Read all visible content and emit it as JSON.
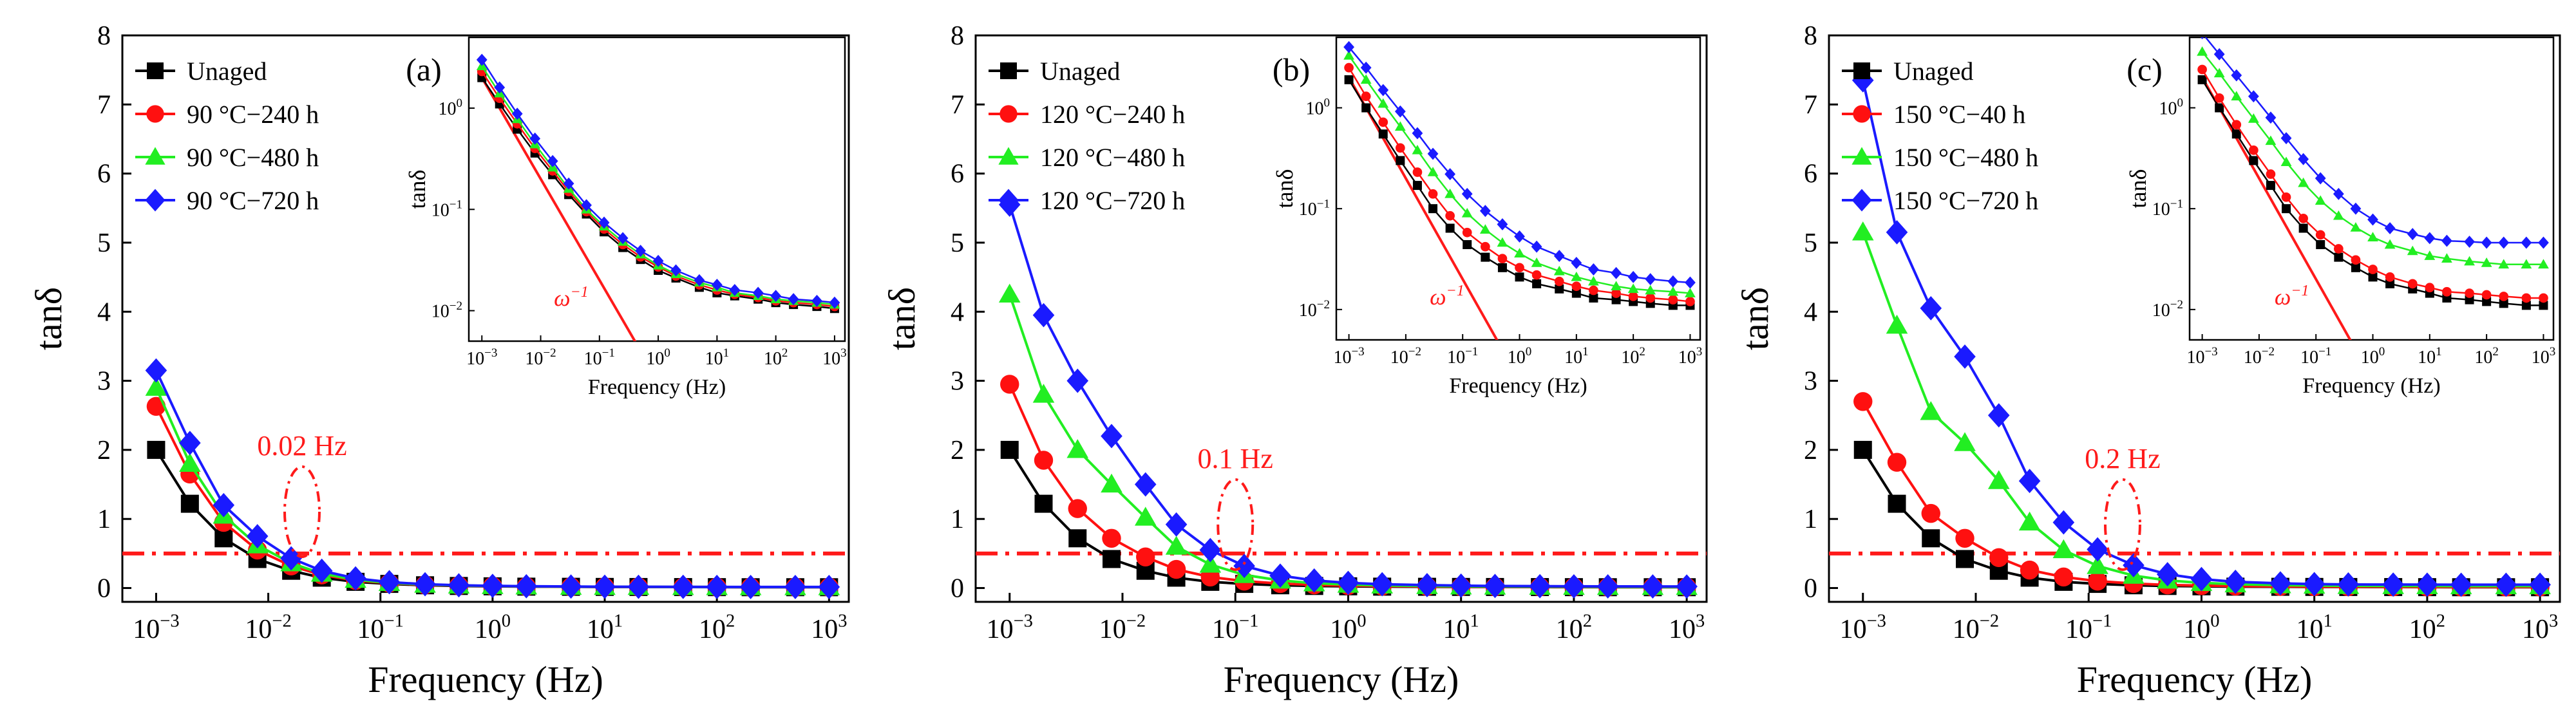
{
  "figure": {
    "xlabel": "Frequency (Hz)",
    "ylabel_main": "tanδ",
    "ylabel_inset": "tanδ",
    "inset_xlabel": "Frequency (Hz)",
    "omega_label": "ω",
    "omega_exp": "−1",
    "main_yticks": [
      "0",
      "1",
      "2",
      "3",
      "4",
      "5",
      "6",
      "7",
      "8"
    ],
    "log_xticks": [
      {
        "base": "10",
        "exp": "−3"
      },
      {
        "base": "10",
        "exp": "−2"
      },
      {
        "base": "10",
        "exp": "−1"
      },
      {
        "base": "10",
        "exp": "0"
      },
      {
        "base": "10",
        "exp": "1"
      },
      {
        "base": "10",
        "exp": "2"
      },
      {
        "base": "10",
        "exp": "3"
      }
    ],
    "inset_yticks": [
      {
        "base": "10",
        "exp": "−2"
      },
      {
        "base": "10",
        "exp": "−1"
      },
      {
        "base": "10",
        "exp": "0"
      }
    ],
    "colors": {
      "Unaged": "#000000",
      "red": "#ff1010",
      "green": "#22ee22",
      "blue": "#1a1aff",
      "annotation": "#ff1a1a",
      "axis": "#000000"
    },
    "markers": [
      "square",
      "circle",
      "triangle",
      "diamond"
    ]
  },
  "chart_data": [
    {
      "type": "line",
      "panel": "(a)",
      "title": "",
      "xlabel": "Frequency (Hz)",
      "ylabel": "tanδ",
      "xscale": "log",
      "xlim": [
        0.0005,
        1500
      ],
      "ylim": [
        -0.2,
        8
      ],
      "legend_position": "top-left",
      "x": [
        0.001,
        0.002,
        0.004,
        0.008,
        0.016,
        0.03,
        0.06,
        0.12,
        0.25,
        0.5,
        1,
        2,
        5,
        10,
        20,
        50,
        100,
        200,
        500,
        1000
      ],
      "series": [
        {
          "name": "Unaged",
          "values": [
            2.0,
            1.22,
            0.72,
            0.42,
            0.25,
            0.15,
            0.09,
            0.06,
            0.04,
            0.03,
            0.025,
            0.02,
            0.018,
            0.016,
            0.015,
            0.014,
            0.013,
            0.012,
            0.012,
            0.012
          ]
        },
        {
          "name": "90 °C−240 h",
          "values": [
            2.63,
            1.65,
            0.95,
            0.55,
            0.32,
            0.19,
            0.11,
            0.07,
            0.045,
            0.035,
            0.028,
            0.022,
            0.019,
            0.017,
            0.016,
            0.015,
            0.014,
            0.013,
            0.013,
            0.013
          ]
        },
        {
          "name": "90 °C−480 h",
          "values": [
            2.9,
            1.8,
            1.05,
            0.62,
            0.36,
            0.21,
            0.12,
            0.075,
            0.05,
            0.037,
            0.03,
            0.024,
            0.02,
            0.018,
            0.017,
            0.016,
            0.015,
            0.014,
            0.014,
            0.014
          ]
        },
        {
          "name": "90 °C−720 h",
          "values": [
            3.15,
            2.1,
            1.2,
            0.75,
            0.43,
            0.25,
            0.14,
            0.085,
            0.055,
            0.04,
            0.032,
            0.026,
            0.022,
            0.019,
            0.018,
            0.017,
            0.016,
            0.015,
            0.015,
            0.015
          ]
        }
      ],
      "annotations": [
        {
          "text": "0.02 Hz",
          "x": 0.02
        },
        {
          "type": "hline",
          "y": 0.5,
          "style": "dash-dot"
        }
      ],
      "inset": {
        "xscale": "log",
        "yscale": "log",
        "xlim": [
          0.0006,
          1500
        ],
        "ylim": [
          0.005,
          5
        ],
        "xlabel": "Frequency (Hz)",
        "ylabel": "tanδ",
        "reference_line": {
          "label": "ω^−1",
          "from": [
            0.001,
            2.0
          ],
          "to": [
            3,
            0.00067
          ]
        },
        "series": [
          {
            "name": "Unaged",
            "values": [
              2.0,
              1.1,
              0.62,
              0.36,
              0.22,
              0.14,
              0.09,
              0.06,
              0.042,
              0.032,
              0.025,
              0.021,
              0.017,
              0.015,
              0.014,
              0.013,
              0.012,
              0.0115,
              0.011,
              0.0105
            ]
          },
          {
            "name": "90 °C−240 h",
            "values": [
              2.3,
              1.25,
              0.7,
              0.4,
              0.24,
              0.15,
              0.095,
              0.064,
              0.045,
              0.034,
              0.027,
              0.022,
              0.018,
              0.016,
              0.0145,
              0.0135,
              0.0125,
              0.012,
              0.0115,
              0.011
            ]
          },
          {
            "name": "90 °C−480 h",
            "values": [
              2.6,
              1.4,
              0.78,
              0.44,
              0.26,
              0.16,
              0.1,
              0.068,
              0.048,
              0.036,
              0.028,
              0.023,
              0.019,
              0.017,
              0.015,
              0.014,
              0.013,
              0.0125,
              0.012,
              0.0115
            ]
          },
          {
            "name": "90 °C−720 h",
            "values": [
              3.0,
              1.6,
              0.88,
              0.5,
              0.3,
              0.18,
              0.11,
              0.074,
              0.052,
              0.039,
              0.031,
              0.025,
              0.02,
              0.018,
              0.016,
              0.015,
              0.014,
              0.013,
              0.0125,
              0.012
            ]
          }
        ]
      }
    },
    {
      "type": "line",
      "panel": "(b)",
      "title": "",
      "xlabel": "Frequency (Hz)",
      "ylabel": "tanδ",
      "xscale": "log",
      "xlim": [
        0.0005,
        1500
      ],
      "ylim": [
        -0.2,
        8
      ],
      "legend_position": "top-left",
      "x": [
        0.001,
        0.002,
        0.004,
        0.008,
        0.016,
        0.03,
        0.06,
        0.12,
        0.25,
        0.5,
        1,
        2,
        5,
        10,
        20,
        50,
        100,
        200,
        500,
        1000
      ],
      "series": [
        {
          "name": "Unaged",
          "values": [
            2.0,
            1.22,
            0.72,
            0.42,
            0.25,
            0.15,
            0.09,
            0.06,
            0.04,
            0.03,
            0.025,
            0.02,
            0.018,
            0.016,
            0.015,
            0.014,
            0.013,
            0.012,
            0.012,
            0.012
          ]
        },
        {
          "name": "120 °C−240 h",
          "values": [
            2.95,
            1.85,
            1.15,
            0.72,
            0.45,
            0.27,
            0.16,
            0.1,
            0.065,
            0.045,
            0.035,
            0.028,
            0.023,
            0.02,
            0.018,
            0.017,
            0.016,
            0.015,
            0.015,
            0.015
          ]
        },
        {
          "name": "120 °C−480 h",
          "values": [
            4.25,
            2.8,
            2.0,
            1.5,
            1.02,
            0.6,
            0.34,
            0.19,
            0.11,
            0.07,
            0.05,
            0.038,
            0.03,
            0.025,
            0.022,
            0.02,
            0.019,
            0.018,
            0.017,
            0.017
          ]
        },
        {
          "name": "120 °C−720 h",
          "values": [
            5.55,
            3.95,
            3.0,
            2.2,
            1.5,
            0.92,
            0.55,
            0.32,
            0.18,
            0.11,
            0.075,
            0.055,
            0.042,
            0.035,
            0.03,
            0.027,
            0.025,
            0.024,
            0.023,
            0.022
          ]
        }
      ],
      "annotations": [
        {
          "text": "0.1 Hz",
          "x": 0.1
        },
        {
          "type": "hline",
          "y": 0.5,
          "style": "dash-dot"
        }
      ],
      "inset": {
        "xscale": "log",
        "yscale": "log",
        "xlim": [
          0.0006,
          1500
        ],
        "ylim": [
          0.005,
          5
        ],
        "xlabel": "Frequency (Hz)",
        "ylabel": "tanδ",
        "reference_line": {
          "label": "ω^−1",
          "from": [
            0.001,
            2.0
          ],
          "to": [
            8,
            0.00025
          ]
        },
        "series": [
          {
            "name": "Unaged",
            "values": [
              1.9,
              1.0,
              0.55,
              0.3,
              0.17,
              0.1,
              0.064,
              0.044,
              0.033,
              0.026,
              0.021,
              0.018,
              0.016,
              0.0145,
              0.013,
              0.0125,
              0.012,
              0.0115,
              0.011,
              0.011
            ]
          },
          {
            "name": "120 °C−240 h",
            "values": [
              2.5,
              1.3,
              0.72,
              0.4,
              0.23,
              0.14,
              0.085,
              0.058,
              0.042,
              0.032,
              0.026,
              0.022,
              0.019,
              0.017,
              0.0155,
              0.0145,
              0.0135,
              0.013,
              0.0125,
              0.012
            ]
          },
          {
            "name": "120 °C−480 h",
            "values": [
              3.3,
              1.9,
              1.1,
              0.65,
              0.38,
              0.23,
              0.14,
              0.09,
              0.062,
              0.046,
              0.036,
              0.029,
              0.024,
              0.021,
              0.019,
              0.017,
              0.016,
              0.0155,
              0.015,
              0.0145
            ]
          },
          {
            "name": "120 °C−720 h",
            "values": [
              4.0,
              2.5,
              1.5,
              0.92,
              0.56,
              0.35,
              0.22,
              0.14,
              0.095,
              0.07,
              0.053,
              0.042,
              0.034,
              0.029,
              0.025,
              0.023,
              0.021,
              0.02,
              0.019,
              0.0185
            ]
          }
        ]
      }
    },
    {
      "type": "line",
      "panel": "(c)",
      "title": "",
      "xlabel": "Frequency (Hz)",
      "ylabel": "tanδ",
      "xscale": "log",
      "xlim": [
        0.0005,
        1500
      ],
      "ylim": [
        -0.2,
        8
      ],
      "legend_position": "top-left",
      "x": [
        0.001,
        0.002,
        0.004,
        0.008,
        0.016,
        0.03,
        0.06,
        0.12,
        0.25,
        0.5,
        1,
        2,
        5,
        10,
        20,
        50,
        100,
        200,
        500,
        1000
      ],
      "series": [
        {
          "name": "Unaged",
          "values": [
            2.0,
            1.22,
            0.72,
            0.42,
            0.25,
            0.15,
            0.09,
            0.06,
            0.04,
            0.03,
            0.025,
            0.02,
            0.018,
            0.016,
            0.015,
            0.014,
            0.013,
            0.012,
            0.012,
            0.012
          ]
        },
        {
          "name": "150 °C−40 h",
          "values": [
            2.7,
            1.82,
            1.08,
            0.72,
            0.44,
            0.26,
            0.16,
            0.1,
            0.065,
            0.045,
            0.035,
            0.028,
            0.023,
            0.02,
            0.018,
            0.017,
            0.016,
            0.015,
            0.015,
            0.015
          ]
        },
        {
          "name": "150 °C−480 h",
          "values": [
            5.15,
            3.8,
            2.55,
            2.1,
            1.55,
            0.95,
            0.55,
            0.32,
            0.18,
            0.11,
            0.075,
            0.055,
            0.042,
            0.036,
            0.032,
            0.03,
            0.029,
            0.028,
            0.028,
            0.028
          ]
        },
        {
          "name": "150 °C−720 h",
          "values": [
            7.35,
            5.15,
            4.05,
            3.35,
            2.5,
            1.55,
            0.95,
            0.56,
            0.33,
            0.2,
            0.13,
            0.09,
            0.068,
            0.057,
            0.052,
            0.05,
            0.049,
            0.048,
            0.048,
            0.048
          ]
        }
      ],
      "annotations": [
        {
          "text": "0.2 Hz",
          "x": 0.2
        },
        {
          "type": "hline",
          "y": 0.5,
          "style": "dash-dot"
        }
      ],
      "inset": {
        "xscale": "log",
        "yscale": "log",
        "xlim": [
          0.0006,
          1500
        ],
        "ylim": [
          0.005,
          5
        ],
        "xlabel": "Frequency (Hz)",
        "ylabel": "tanδ",
        "reference_line": {
          "label": "ω^−1",
          "from": [
            0.001,
            2.0
          ],
          "to": [
            4,
            0.0005
          ]
        },
        "series": [
          {
            "name": "Unaged",
            "values": [
              1.9,
              1.0,
              0.55,
              0.3,
              0.17,
              0.1,
              0.064,
              0.044,
              0.033,
              0.026,
              0.021,
              0.018,
              0.016,
              0.0145,
              0.013,
              0.0125,
              0.012,
              0.0115,
              0.011,
              0.011
            ]
          },
          {
            "name": "150 °C−40 h",
            "values": [
              2.4,
              1.25,
              0.68,
              0.38,
              0.22,
              0.13,
              0.08,
              0.055,
              0.04,
              0.031,
              0.025,
              0.021,
              0.018,
              0.0165,
              0.015,
              0.0145,
              0.014,
              0.0135,
              0.013,
              0.013
            ]
          },
          {
            "name": "150 °C−480 h",
            "values": [
              3.6,
              2.2,
              1.3,
              0.78,
              0.47,
              0.29,
              0.18,
              0.12,
              0.085,
              0.065,
              0.052,
              0.044,
              0.038,
              0.034,
              0.032,
              0.03,
              0.029,
              0.028,
              0.028,
              0.028
            ]
          },
          {
            "name": "150 °C−720 h",
            "values": [
              5.5,
              3.4,
              2.1,
              1.3,
              0.8,
              0.5,
              0.31,
              0.2,
              0.14,
              0.1,
              0.078,
              0.064,
              0.056,
              0.051,
              0.048,
              0.047,
              0.046,
              0.046,
              0.046,
              0.046
            ]
          }
        ]
      }
    }
  ]
}
